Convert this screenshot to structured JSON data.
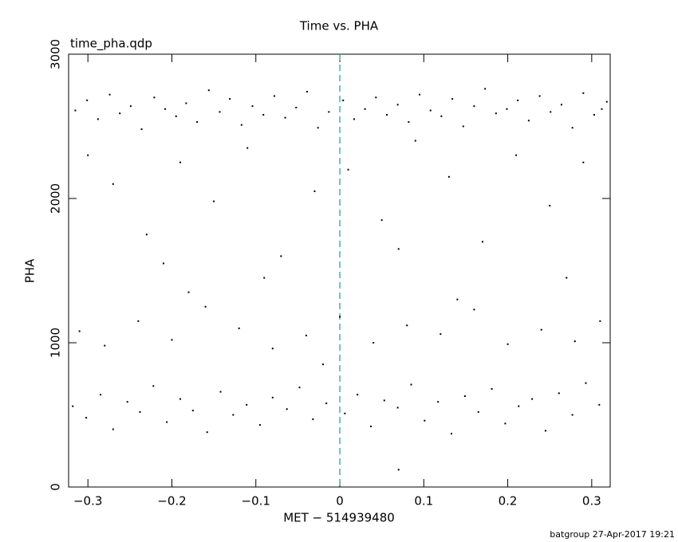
{
  "chart_data": {
    "type": "scatter",
    "title": "Time vs. PHA",
    "subtitle": "time_pha.qdp",
    "x_label": "MET − 514939480",
    "y_label": "PHA",
    "footer": "batgroup 27-Apr-2017 19:21",
    "color": "#000000",
    "reference_line_x": 0,
    "reference_line_color": "#1a9a9a",
    "grid": false,
    "xlim": [
      -0.323,
      0.322
    ],
    "ylim": [
      0,
      3000
    ],
    "xticks": [
      {
        "value": -0.3,
        "label": "−0.3"
      },
      {
        "value": -0.2,
        "label": "−0.2"
      },
      {
        "value": -0.1,
        "label": "−0.1"
      },
      0,
      0.1,
      0.2,
      0.3
    ],
    "yticks": [
      0,
      1000,
      2000,
      3000
    ],
    "x": [
      -0.315,
      -0.301,
      -0.288,
      -0.274,
      -0.262,
      -0.249,
      -0.236,
      -0.221,
      -0.208,
      -0.195,
      -0.183,
      -0.17,
      -0.156,
      -0.143,
      -0.131,
      -0.117,
      -0.104,
      -0.091,
      -0.078,
      -0.065,
      -0.052,
      -0.039,
      -0.026,
      -0.013,
      0.004,
      0.017,
      0.03,
      0.043,
      0.056,
      0.069,
      0.082,
      0.095,
      0.108,
      0.121,
      0.134,
      0.147,
      0.16,
      0.173,
      0.186,
      0.199,
      0.212,
      0.225,
      0.238,
      0.251,
      0.264,
      0.277,
      0.29,
      0.303,
      0.312,
      0.318,
      -0.3,
      -0.27,
      -0.23,
      -0.19,
      -0.15,
      -0.11,
      -0.07,
      -0.03,
      0.01,
      0.05,
      0.09,
      0.13,
      0.17,
      0.21,
      0.25,
      0.29,
      -0.21,
      0.07,
      -0.09,
      0.27,
      -0.31,
      -0.28,
      -0.24,
      -0.2,
      -0.16,
      -0.12,
      -0.08,
      -0.04,
      0.0,
      0.04,
      0.08,
      0.12,
      0.16,
      0.2,
      0.24,
      0.28,
      0.31,
      -0.18,
      0.14,
      -0.02,
      -0.318,
      -0.302,
      -0.285,
      -0.27,
      -0.253,
      -0.238,
      -0.222,
      -0.206,
      -0.19,
      -0.175,
      -0.158,
      -0.142,
      -0.127,
      -0.111,
      -0.095,
      -0.08,
      -0.063,
      -0.048,
      -0.032,
      -0.016,
      0.006,
      0.021,
      0.037,
      0.053,
      0.069,
      0.085,
      0.101,
      0.117,
      0.133,
      0.149,
      0.165,
      0.181,
      0.197,
      0.213,
      0.229,
      0.245,
      0.261,
      0.277,
      0.293,
      0.309,
      0.07
    ],
    "values": [
      2610,
      2680,
      2550,
      2720,
      2590,
      2640,
      2480,
      2700,
      2620,
      2570,
      2660,
      2530,
      2750,
      2600,
      2690,
      2510,
      2640,
      2580,
      2710,
      2560,
      2630,
      2740,
      2490,
      2600,
      2680,
      2550,
      2620,
      2700,
      2580,
      2650,
      2530,
      2720,
      2610,
      2570,
      2690,
      2500,
      2640,
      2760,
      2590,
      2620,
      2680,
      2540,
      2710,
      2600,
      2650,
      2490,
      2730,
      2580,
      2620,
      2670,
      2300,
      2100,
      1750,
      2250,
      1980,
      2350,
      1600,
      2050,
      2200,
      1850,
      2400,
      2150,
      1700,
      2300,
      1950,
      2250,
      1550,
      1650,
      1450,
      1450,
      1080,
      980,
      1150,
      1020,
      1250,
      1100,
      960,
      1050,
      1180,
      1000,
      1120,
      1060,
      1230,
      990,
      1090,
      1010,
      1150,
      1350,
      1300,
      850,
      560,
      480,
      640,
      400,
      590,
      520,
      700,
      450,
      610,
      530,
      380,
      660,
      500,
      570,
      430,
      620,
      540,
      690,
      470,
      580,
      510,
      640,
      420,
      600,
      550,
      710,
      460,
      590,
      370,
      630,
      520,
      680,
      440,
      560,
      610,
      390,
      650,
      500,
      720,
      570,
      120
    ]
  }
}
